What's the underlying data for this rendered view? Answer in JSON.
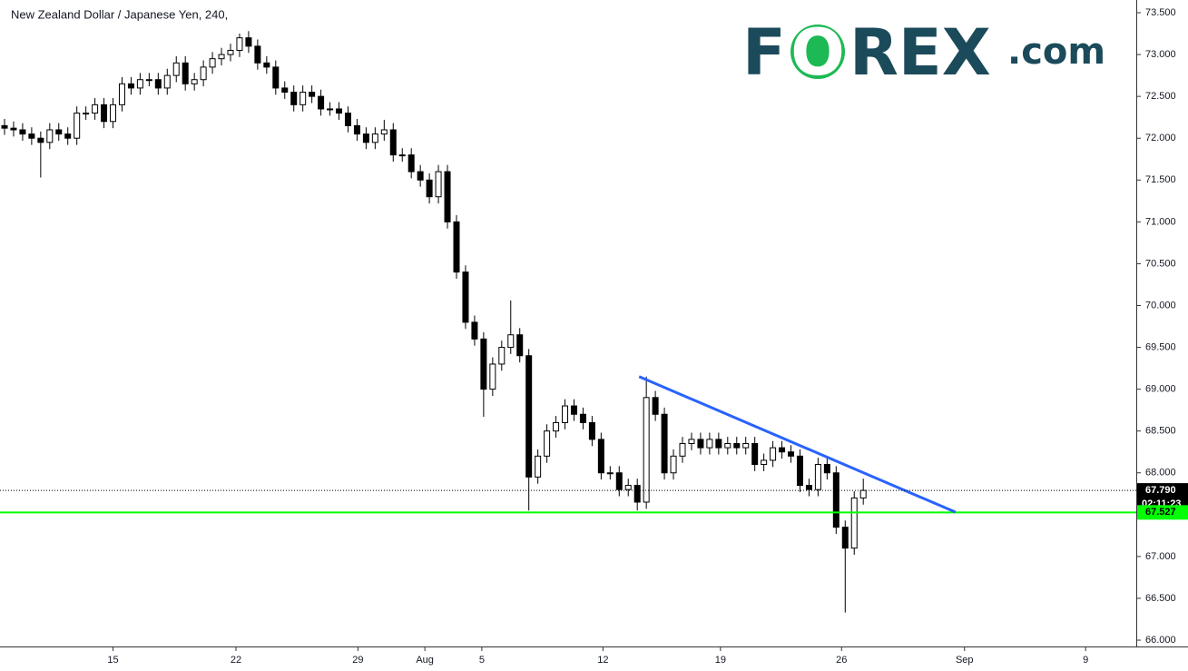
{
  "chart_data": {
    "type": "candlestick",
    "title": "New Zealand Dollar / Japanese Yen, 240,",
    "logo": [
      "F",
      "O",
      "REX",
      ".com"
    ],
    "up_color": "#ffffff",
    "down_color": "#000000",
    "open": [
      72.15,
      72.12,
      72.1,
      72.05,
      72.0,
      71.95,
      72.1,
      72.05,
      72.0,
      72.3,
      72.3,
      72.4,
      72.2,
      72.4,
      72.65,
      72.6,
      72.7,
      72.7,
      72.6,
      72.75,
      72.9,
      72.65,
      72.7,
      72.85,
      72.95,
      73.0,
      73.05,
      73.2,
      73.1,
      72.9,
      72.85,
      72.6,
      72.55,
      72.4,
      72.55,
      72.5,
      72.35,
      72.35,
      72.3,
      72.15,
      72.05,
      71.95,
      72.05,
      72.1,
      71.8,
      71.8,
      71.6,
      71.5,
      71.3,
      71.6,
      71.0,
      70.4,
      69.8,
      69.6,
      69.0,
      69.3,
      69.5,
      69.65,
      69.4,
      67.95,
      68.2,
      68.5,
      68.6,
      68.8,
      68.7,
      68.6,
      68.4,
      68.0,
      68.0,
      67.8,
      67.85,
      67.65,
      68.9,
      68.7,
      68.0,
      68.2,
      68.35,
      68.4,
      68.3,
      68.4,
      68.3,
      68.35,
      68.3,
      68.35,
      68.1,
      68.15,
      68.3,
      68.25,
      68.2,
      67.85,
      67.8,
      68.1,
      68.0,
      67.35,
      67.1,
      67.7
    ],
    "high": [
      72.23,
      72.2,
      72.18,
      72.13,
      72.08,
      72.18,
      72.18,
      72.13,
      72.38,
      72.38,
      72.48,
      72.48,
      72.48,
      72.73,
      72.73,
      72.78,
      72.78,
      72.78,
      72.83,
      72.98,
      72.98,
      72.78,
      72.93,
      73.03,
      73.08,
      73.13,
      73.25,
      73.28,
      73.18,
      72.98,
      72.93,
      72.68,
      72.63,
      72.63,
      72.63,
      72.58,
      72.43,
      72.43,
      72.38,
      72.23,
      72.13,
      72.13,
      72.22,
      72.18,
      71.88,
      71.88,
      71.68,
      71.58,
      71.68,
      71.68,
      71.08,
      70.48,
      69.88,
      69.68,
      69.38,
      69.58,
      70.06,
      69.73,
      69.48,
      68.28,
      68.58,
      68.68,
      68.88,
      68.88,
      68.78,
      68.68,
      68.48,
      68.08,
      68.08,
      67.93,
      67.93,
      69.15,
      68.98,
      68.78,
      68.28,
      68.43,
      68.48,
      68.48,
      68.48,
      68.48,
      68.43,
      68.43,
      68.43,
      68.43,
      68.23,
      68.38,
      68.38,
      68.33,
      68.28,
      67.93,
      68.18,
      68.18,
      68.08,
      67.43,
      67.78,
      67.93
    ],
    "low": [
      72.04,
      72.02,
      71.97,
      71.92,
      71.53,
      71.87,
      71.97,
      71.92,
      71.92,
      72.22,
      72.22,
      72.12,
      72.12,
      72.32,
      72.52,
      72.52,
      72.62,
      72.52,
      72.52,
      72.67,
      72.57,
      72.57,
      72.62,
      72.77,
      72.87,
      72.92,
      72.97,
      73.02,
      72.82,
      72.77,
      72.52,
      72.47,
      72.32,
      72.32,
      72.42,
      72.27,
      72.27,
      72.22,
      72.07,
      71.97,
      71.87,
      71.87,
      71.97,
      71.72,
      71.72,
      71.52,
      71.42,
      71.22,
      71.22,
      70.92,
      70.32,
      69.72,
      69.52,
      68.67,
      68.92,
      69.22,
      69.42,
      69.32,
      67.55,
      67.87,
      68.12,
      68.42,
      68.52,
      68.62,
      68.52,
      68.32,
      67.92,
      67.92,
      67.72,
      67.72,
      67.55,
      67.57,
      68.62,
      67.92,
      67.92,
      68.12,
      68.27,
      68.22,
      68.22,
      68.22,
      68.22,
      68.22,
      68.22,
      68.02,
      68.02,
      68.07,
      68.17,
      68.12,
      67.77,
      67.72,
      67.72,
      67.92,
      67.27,
      66.33,
      67.02,
      67.62
    ],
    "close": [
      72.12,
      72.1,
      72.05,
      72.0,
      71.95,
      72.1,
      72.05,
      72.0,
      72.3,
      72.3,
      72.4,
      72.2,
      72.4,
      72.65,
      72.6,
      72.7,
      72.7,
      72.6,
      72.75,
      72.9,
      72.65,
      72.7,
      72.85,
      72.95,
      73.0,
      73.05,
      73.2,
      73.1,
      72.9,
      72.85,
      72.6,
      72.55,
      72.4,
      72.55,
      72.5,
      72.35,
      72.35,
      72.3,
      72.15,
      72.05,
      71.95,
      72.05,
      72.1,
      71.8,
      71.8,
      71.6,
      71.5,
      71.3,
      71.6,
      71.0,
      70.4,
      69.8,
      69.6,
      69.0,
      69.3,
      69.5,
      69.65,
      69.4,
      67.95,
      68.2,
      68.5,
      68.6,
      68.8,
      68.7,
      68.6,
      68.4,
      68.0,
      68.0,
      67.8,
      67.85,
      67.65,
      68.9,
      68.7,
      68.0,
      68.2,
      68.35,
      68.4,
      68.3,
      68.4,
      68.3,
      68.35,
      68.3,
      68.35,
      68.1,
      68.15,
      68.3,
      68.25,
      68.2,
      67.85,
      67.8,
      68.1,
      68.0,
      67.35,
      67.1,
      67.7,
      67.79
    ],
    "xlim": [
      0,
      125
    ],
    "xticks": [
      {
        "value": 12,
        "label": "15"
      },
      {
        "value": 25.6,
        "label": "22"
      },
      {
        "value": 39.1,
        "label": "29"
      },
      {
        "value": 46.5,
        "label": "Aug"
      },
      {
        "value": 52.8,
        "label": "5"
      },
      {
        "value": 66.2,
        "label": "12"
      },
      {
        "value": 79.2,
        "label": "19"
      },
      {
        "value": 92.6,
        "label": "26"
      },
      {
        "value": 106.2,
        "label": "Sep"
      },
      {
        "value": 119.6,
        "label": "9"
      }
    ],
    "ylim": [
      65.946,
      73.652
    ],
    "yticks": [
      {
        "value": 66,
        "label": "66.000"
      },
      {
        "value": 66.5,
        "label": "66.500"
      },
      {
        "value": 67,
        "label": "67.000"
      },
      {
        "value": 67.5,
        "label": "67.500"
      },
      {
        "value": 68,
        "label": "68.000"
      },
      {
        "value": 68.5,
        "label": "68.500"
      },
      {
        "value": 69,
        "label": "69.000"
      },
      {
        "value": 69.5,
        "label": "69.500"
      },
      {
        "value": 70,
        "label": "70.000"
      },
      {
        "value": 70.5,
        "label": "70.500"
      },
      {
        "value": 71,
        "label": "71.000"
      },
      {
        "value": 71.5,
        "label": "71.500"
      },
      {
        "value": 72,
        "label": "72.000"
      },
      {
        "value": 72.5,
        "label": "72.500"
      },
      {
        "value": 73,
        "label": "73.000"
      },
      {
        "value": 73.5,
        "label": "73.500"
      }
    ],
    "trendline": {
      "x": [
        70.2,
        105.2
      ],
      "y": [
        69.15,
        67.53
      ],
      "color": "#2962ff"
    },
    "support": {
      "value": 67.527,
      "label": "67.527",
      "color": "#00ff00"
    },
    "last_price": {
      "value": 67.79,
      "label": "67.790"
    },
    "countdown": "02:11:23"
  }
}
